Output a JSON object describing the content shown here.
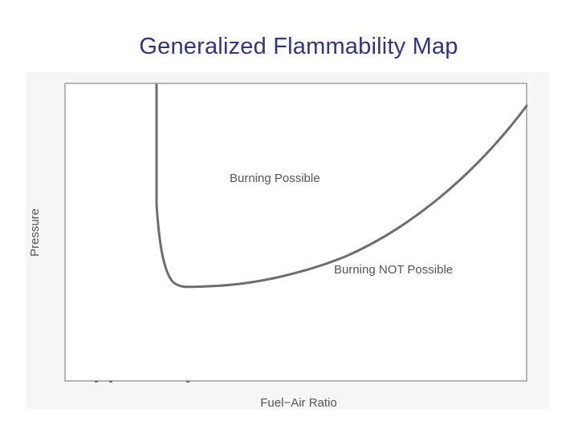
{
  "slide": {
    "title": "Generalized Flammability Map"
  },
  "figure": {
    "ylabel": "Pressure",
    "xlabel": "Fuel−Air Ratio",
    "region_upper": "Burning Possible",
    "region_lower": "Burning NOT Possible"
  }
}
